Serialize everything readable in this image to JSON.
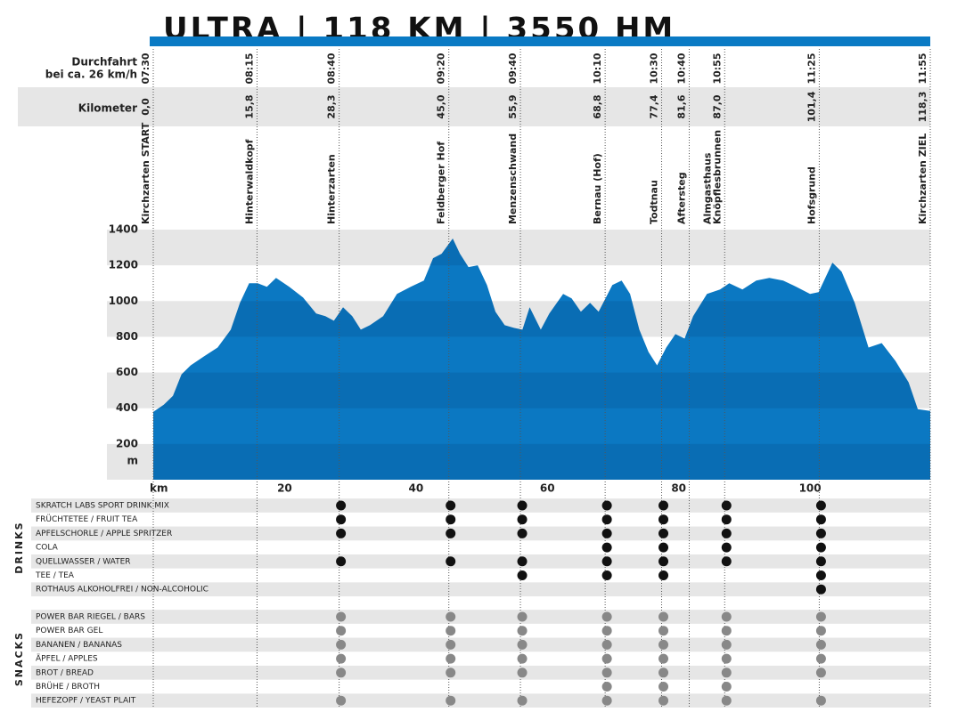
{
  "title": "ULTRA | 118 KM | 3550 HM",
  "time_label": [
    "Durchfahrt",
    "bei ca. 26 km/h"
  ],
  "km_label": "Kilometer",
  "checkpoints": [
    {
      "time": "07:30",
      "km": {
        "value": 0,
        "label": "0,0"
      },
      "name": [
        "Kirchzarten START"
      ]
    },
    {
      "time": "08:15",
      "km": {
        "value": 15.8,
        "label": "15,8"
      },
      "name": [
        "Hinterwaldkopf"
      ]
    },
    {
      "time": "08:40",
      "km": {
        "value": 28.3,
        "label": "28,3"
      },
      "name": [
        "Hinterzarten"
      ]
    },
    {
      "time": "09:20",
      "km": {
        "value": 45.0,
        "label": "45,0"
      },
      "name": [
        "Feldberger Hof"
      ]
    },
    {
      "time": "09:40",
      "km": {
        "value": 55.9,
        "label": "55,9"
      },
      "name": [
        "Menzenschwand"
      ]
    },
    {
      "time": "10:10",
      "km": {
        "value": 68.8,
        "label": "68,8"
      },
      "name": [
        "Bernau (Hof)"
      ]
    },
    {
      "time": "10:30",
      "km": {
        "value": 77.4,
        "label": "77,4"
      },
      "name": [
        "Todtnau"
      ]
    },
    {
      "time": "10:40",
      "km": {
        "value": 81.6,
        "label": "81,6"
      },
      "name": [
        "Aftersteg"
      ]
    },
    {
      "time": "10:55",
      "km": {
        "value": 87.0,
        "label": "87,0"
      },
      "name": [
        "Almgasthaus",
        "Knöpflesbrunnen"
      ]
    },
    {
      "time": "11:25",
      "km": {
        "value": 101.4,
        "label": "101,4"
      },
      "name": [
        "Hofsgrund"
      ]
    },
    {
      "time": "11:55",
      "km": {
        "value": 118.3,
        "label": "118,3"
      },
      "name": [
        "Kirchzarten ZIEL"
      ]
    }
  ],
  "chart_data": {
    "type": "area",
    "color": "#0b78c2",
    "x": [
      0,
      1.6,
      3,
      4.3,
      5.7,
      7.7,
      9.8,
      11.8,
      13.2,
      14.6,
      15.9,
      17.3,
      18.7,
      20.7,
      22.8,
      24.8,
      26.2,
      27.5,
      28.9,
      30.3,
      31.6,
      33,
      35,
      37.1,
      39.2,
      41.2,
      42.6,
      43.9,
      45.6,
      46.7,
      48,
      49.4,
      50.8,
      52.1,
      53.5,
      54.9,
      56.2,
      57.3,
      59,
      60.3,
      62.4,
      63.7,
      65.1,
      66.5,
      67.8,
      69.9,
      71.3,
      72.6,
      74,
      75.4,
      76.7,
      78.1,
      79.5,
      80.9,
      82.2,
      84.3,
      86.3,
      87.7,
      89.7,
      91.8,
      93.8,
      95.9,
      97.9,
      100,
      101.3,
      103.4,
      104.8,
      106.8,
      108.9,
      110.9,
      113,
      115,
      116.4,
      118.3
    ],
    "values": [
      380,
      420,
      470,
      590,
      640,
      690,
      740,
      840,
      990,
      1100,
      1100,
      1080,
      1130,
      1080,
      1020,
      930,
      915,
      890,
      965,
      915,
      840,
      865,
      915,
      1040,
      1080,
      1115,
      1240,
      1265,
      1350,
      1265,
      1190,
      1200,
      1090,
      940,
      865,
      850,
      840,
      965,
      840,
      930,
      1040,
      1015,
      940,
      990,
      940,
      1090,
      1115,
      1040,
      840,
      715,
      640,
      740,
      815,
      790,
      915,
      1040,
      1065,
      1100,
      1065,
      1115,
      1130,
      1115,
      1080,
      1040,
      1050,
      1215,
      1165,
      990,
      740,
      765,
      665,
      545,
      395,
      385
    ],
    "xlim": [
      0,
      118.3
    ],
    "ylim": [
      0,
      1400
    ],
    "xticks": [
      20,
      40,
      60,
      80,
      100
    ],
    "yticks": [
      200,
      400,
      600,
      800,
      1000,
      1200,
      1400
    ],
    "x_label": "km",
    "y_label": "m"
  },
  "drinks": {
    "title": "DRINKS",
    "rows": [
      {
        "label": "SKRATCH LABS SPORT DRINK MIX",
        "at": [
          2,
          3,
          4,
          5,
          6,
          8,
          9
        ]
      },
      {
        "label": "FRÜCHTETEE / FRUIT TEA",
        "at": [
          2,
          3,
          4,
          5,
          6,
          8,
          9
        ]
      },
      {
        "label": "APFELSCHORLE / APPLE SPRITZER",
        "at": [
          2,
          3,
          4,
          5,
          6,
          8,
          9
        ]
      },
      {
        "label": "COLA",
        "at": [
          5,
          6,
          8,
          9
        ]
      },
      {
        "label": "QUELLWASSER / WATER",
        "at": [
          2,
          3,
          4,
          5,
          6,
          8,
          9
        ]
      },
      {
        "label": "TEE / TEA",
        "at": [
          4,
          5,
          6,
          9
        ]
      },
      {
        "label": "ROTHAUS ALKOHOLFREI / NON-ALCOHOLIC",
        "at": [
          9
        ]
      }
    ]
  },
  "snacks": {
    "title": "SNACKS",
    "rows": [
      {
        "label": "POWER BAR RIEGEL / BARS",
        "at": [
          2,
          3,
          4,
          5,
          6,
          8,
          9
        ]
      },
      {
        "label": "POWER BAR GEL",
        "at": [
          2,
          3,
          4,
          5,
          6,
          8,
          9
        ]
      },
      {
        "label": "BANANEN / BANANAS",
        "at": [
          2,
          3,
          4,
          5,
          6,
          8,
          9
        ]
      },
      {
        "label": "ÄPFEL / APPLES",
        "at": [
          2,
          3,
          4,
          5,
          6,
          8,
          9
        ]
      },
      {
        "label": "BROT / BREAD",
        "at": [
          2,
          3,
          4,
          5,
          6,
          8,
          9
        ]
      },
      {
        "label": "BRÜHE / BROTH",
        "at": [
          5,
          6,
          8
        ]
      },
      {
        "label": "HEFEZOPF / YEAST PLAIT",
        "at": [
          2,
          3,
          4,
          5,
          6,
          8,
          9
        ]
      }
    ]
  }
}
